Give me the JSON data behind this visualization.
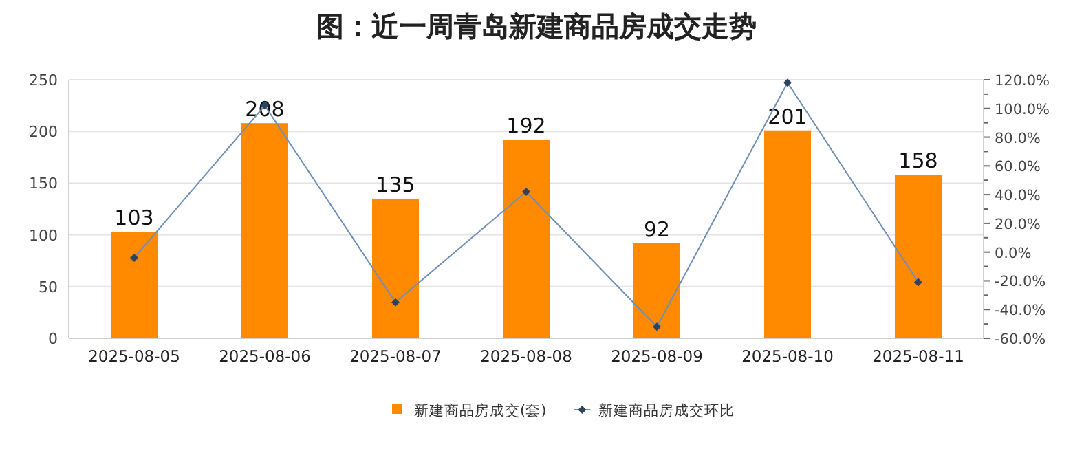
{
  "chart_data": {
    "type": "bar",
    "title": "图：近一周青岛新建商品房成交走势",
    "categories": [
      "2025-08-05",
      "2025-08-06",
      "2025-08-07",
      "2025-08-08",
      "2025-08-09",
      "2025-08-10",
      "2025-08-11"
    ],
    "series": [
      {
        "name": "新建商品房成交(套)",
        "color": "#ff8a00",
        "values": [
          103,
          208,
          135,
          192,
          92,
          201,
          158
        ],
        "value_labels": [
          "103",
          "208",
          "135",
          "192",
          "92",
          "201",
          "158"
        ]
      },
      {
        "name": "新建商品房成交环比",
        "type": "line",
        "axis": "y2",
        "color": "#6e8fb5",
        "marker": "diamond",
        "values": [
          -4,
          102,
          -35,
          42,
          -52,
          118,
          -21
        ]
      }
    ],
    "ylim": [
      0,
      250
    ],
    "yticks": [
      0,
      50,
      100,
      150,
      200,
      250
    ],
    "y2lim": [
      -60,
      120
    ],
    "y2ticks": [
      {
        "value": -60,
        "label": "-60.0%"
      },
      {
        "value": -40,
        "label": "-40.0%"
      },
      {
        "value": -20,
        "label": "-20.0%"
      },
      {
        "value": 0,
        "label": "0.0%"
      },
      {
        "value": 20,
        "label": "20.0%"
      },
      {
        "value": 40,
        "label": "40.0%"
      },
      {
        "value": 60,
        "label": "60.0%"
      },
      {
        "value": 80,
        "label": "80.0%"
      },
      {
        "value": 100,
        "label": "100.0%"
      },
      {
        "value": 120,
        "label": "120.0%"
      }
    ],
    "grid": "y",
    "legend": "bottom"
  }
}
